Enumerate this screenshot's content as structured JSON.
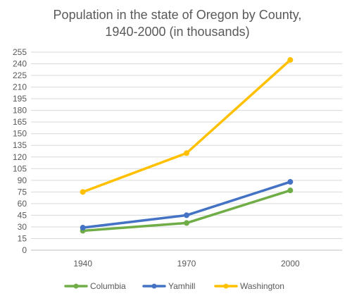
{
  "chart_data": {
    "type": "line",
    "title_lines": [
      "Population in the state of Oregon by County,",
      "1940-2000 (in thousands)"
    ],
    "categories": [
      "1940",
      "1970",
      "2000"
    ],
    "ylim": [
      0,
      255
    ],
    "yticks": [
      "0",
      "15",
      "30",
      "45",
      "60",
      "75",
      "90",
      "105",
      "120",
      "135",
      "150",
      "165",
      "180",
      "195",
      "210",
      "225",
      "240",
      "255"
    ],
    "grid": true,
    "legend_position": "bottom",
    "series": [
      {
        "name": "Columbia",
        "color": "#70AD47",
        "values": [
          25,
          35,
          77
        ]
      },
      {
        "name": "Yamhill",
        "color": "#4472C4",
        "values": [
          29,
          45,
          88
        ]
      },
      {
        "name": "Washington",
        "color": "#FFC000",
        "values": [
          75,
          125,
          245
        ]
      }
    ]
  }
}
